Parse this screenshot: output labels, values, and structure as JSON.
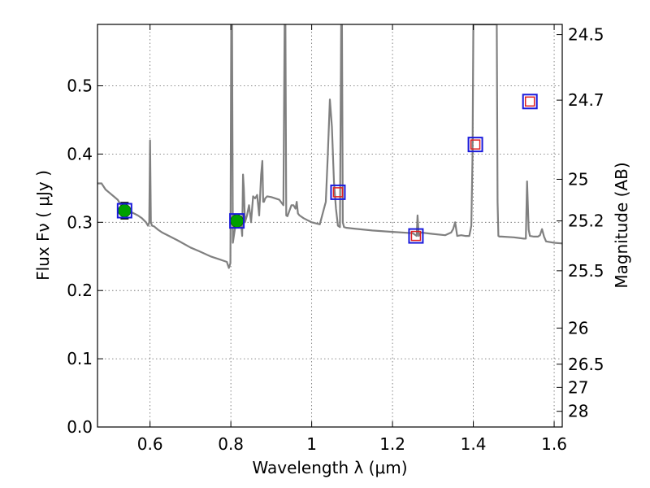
{
  "chart_data": {
    "type": "line",
    "xlabel": "Wavelength  λ (μm)",
    "ylabel": "Flux  Fν  ( μJy )",
    "y2label": "Magnitude (AB)",
    "xlim": [
      0.47,
      1.62
    ],
    "ylim": [
      0.0,
      0.59
    ],
    "grid": true,
    "x_ticks": [
      {
        "value": 0.6,
        "label": "0.6"
      },
      {
        "value": 0.8,
        "label": "0.8"
      },
      {
        "value": 1.0,
        "label": "1"
      },
      {
        "value": 1.2,
        "label": "1.2"
      },
      {
        "value": 1.4,
        "label": "1.4"
      },
      {
        "value": 1.6,
        "label": "1.6"
      }
    ],
    "y_ticks": [
      {
        "value": 0.0,
        "label": "0.0"
      },
      {
        "value": 0.1,
        "label": "0.1"
      },
      {
        "value": 0.2,
        "label": "0.2"
      },
      {
        "value": 0.3,
        "label": "0.3"
      },
      {
        "value": 0.4,
        "label": "0.4"
      },
      {
        "value": 0.5,
        "label": "0.5"
      }
    ],
    "y2_ticks": [
      {
        "flux": 0.575,
        "label": "24.5"
      },
      {
        "flux": 0.479,
        "label": "24.7"
      },
      {
        "flux": 0.363,
        "label": "25"
      },
      {
        "flux": 0.302,
        "label": "25.2"
      },
      {
        "flux": 0.229,
        "label": "25.5"
      },
      {
        "flux": 0.145,
        "label": "26"
      },
      {
        "flux": 0.092,
        "label": "26.5"
      },
      {
        "flux": 0.058,
        "label": "27"
      },
      {
        "flux": 0.023,
        "label": "28"
      }
    ],
    "spectrum": {
      "color": "#808080",
      "x": [
        0.47,
        0.48,
        0.49,
        0.5,
        0.51,
        0.52,
        0.53,
        0.54,
        0.55,
        0.56,
        0.57,
        0.58,
        0.59,
        0.595,
        0.598,
        0.6,
        0.602,
        0.605,
        0.61,
        0.62,
        0.63,
        0.65,
        0.67,
        0.7,
        0.72,
        0.75,
        0.77,
        0.79,
        0.795,
        0.799,
        0.801,
        0.803,
        0.805,
        0.81,
        0.815,
        0.82,
        0.825,
        0.828,
        0.83,
        0.832,
        0.835,
        0.84,
        0.845,
        0.85,
        0.855,
        0.86,
        0.865,
        0.87,
        0.875,
        0.878,
        0.88,
        0.882,
        0.885,
        0.89,
        0.9,
        0.91,
        0.92,
        0.93,
        0.933,
        0.935,
        0.937,
        0.94,
        0.95,
        0.955,
        0.96,
        0.963,
        0.966,
        0.97,
        0.98,
        0.99,
        1.0,
        1.02,
        1.035,
        1.04,
        1.045,
        1.05,
        1.055,
        1.06,
        1.065,
        1.07,
        1.073,
        1.075,
        1.077,
        1.08,
        1.085,
        1.1,
        1.15,
        1.2,
        1.25,
        1.26,
        1.262,
        1.265,
        1.27,
        1.3,
        1.33,
        1.345,
        1.35,
        1.355,
        1.36,
        1.37,
        1.38,
        1.39,
        1.395,
        1.398,
        1.4,
        1.402,
        1.405,
        1.41,
        1.43,
        1.455,
        1.458,
        1.46,
        1.462,
        1.465,
        1.47,
        1.5,
        1.525,
        1.53,
        1.533,
        1.537,
        1.54,
        1.55,
        1.56,
        1.565,
        1.57,
        1.575,
        1.58,
        1.6,
        1.62
      ],
      "y": [
        0.357,
        0.357,
        0.348,
        0.343,
        0.338,
        0.333,
        0.323,
        0.318,
        0.316,
        0.313,
        0.31,
        0.306,
        0.3,
        0.295,
        0.3,
        0.42,
        0.3,
        0.295,
        0.294,
        0.289,
        0.285,
        0.279,
        0.273,
        0.263,
        0.258,
        0.25,
        0.246,
        0.242,
        0.233,
        0.24,
        0.59,
        0.59,
        0.27,
        0.29,
        0.3,
        0.304,
        0.3,
        0.28,
        0.37,
        0.35,
        0.3,
        0.31,
        0.325,
        0.3,
        0.338,
        0.335,
        0.34,
        0.31,
        0.37,
        0.39,
        0.33,
        0.33,
        0.335,
        0.338,
        0.337,
        0.335,
        0.333,
        0.325,
        0.59,
        0.59,
        0.31,
        0.309,
        0.325,
        0.325,
        0.32,
        0.33,
        0.313,
        0.31,
        0.306,
        0.303,
        0.3,
        0.297,
        0.33,
        0.4,
        0.48,
        0.44,
        0.36,
        0.32,
        0.295,
        0.293,
        0.59,
        0.59,
        0.3,
        0.293,
        0.292,
        0.291,
        0.288,
        0.286,
        0.284,
        0.28,
        0.31,
        0.28,
        0.285,
        0.283,
        0.281,
        0.285,
        0.29,
        0.3,
        0.28,
        0.281,
        0.28,
        0.28,
        0.295,
        0.4,
        0.59,
        0.59,
        0.59,
        0.59,
        0.59,
        0.59,
        0.59,
        0.33,
        0.28,
        0.279,
        0.279,
        0.278,
        0.276,
        0.276,
        0.36,
        0.289,
        0.28,
        0.279,
        0.279,
        0.281,
        0.29,
        0.279,
        0.272,
        0.27,
        0.269
      ]
    },
    "markers": {
      "observed": [
        {
          "x": 0.537,
          "y": 0.317,
          "err": 0.012,
          "fill": "#00a000"
        },
        {
          "x": 0.815,
          "y": 0.302,
          "err": 0.01,
          "fill": "#00a000"
        }
      ],
      "model": [
        {
          "x": 0.537,
          "y": 0.317
        },
        {
          "x": 0.815,
          "y": 0.302
        },
        {
          "x": 1.065,
          "y": 0.344
        },
        {
          "x": 1.258,
          "y": 0.28
        },
        {
          "x": 1.405,
          "y": 0.414
        },
        {
          "x": 1.54,
          "y": 0.477
        }
      ],
      "upper_limits": [
        {
          "x": 1.065,
          "y": 0.344
        },
        {
          "x": 1.258,
          "y": 0.28
        },
        {
          "x": 1.405,
          "y": 0.414
        },
        {
          "x": 1.54,
          "y": 0.477
        }
      ],
      "model_color": "#1a1adb",
      "limit_color": "#e02020"
    }
  }
}
